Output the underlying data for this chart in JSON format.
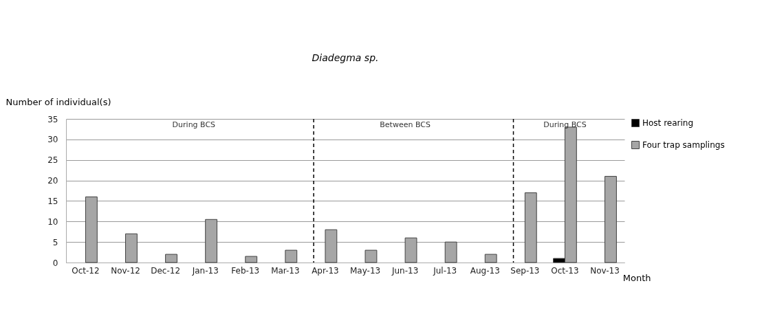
{
  "chart_data": {
    "type": "bar",
    "title": "Diadegma sp.",
    "xlabel": "Month",
    "ylabel": "Number of individual(s)",
    "categories": [
      "Oct-12",
      "Nov-12",
      "Dec-12",
      "Jan-13",
      "Feb-13",
      "Mar-13",
      "Apr-13",
      "May-13",
      "Jun-13",
      "Jul-13",
      "Aug-13",
      "Sep-13",
      "Oct-13",
      "Nov-13"
    ],
    "series": [
      {
        "name": "Host rearing",
        "color": "#000000",
        "values": [
          null,
          null,
          null,
          null,
          null,
          null,
          null,
          null,
          null,
          null,
          null,
          null,
          1,
          null
        ]
      },
      {
        "name": "Four trap samplings",
        "color": "#a6a6a6",
        "values": [
          16,
          7,
          2,
          10.5,
          1.5,
          3,
          8,
          3,
          6,
          5,
          2,
          17,
          33,
          21
        ]
      }
    ],
    "ylim": [
      0,
      35
    ],
    "yticks": [
      0,
      5,
      10,
      15,
      20,
      25,
      30,
      35
    ],
    "grid": "y",
    "legend": "right",
    "ref_lines": [
      {
        "axis": "x",
        "value": "Apr-13",
        "line_style": "dashed",
        "color": "#000000"
      },
      {
        "axis": "x",
        "value": "Sep-13",
        "line_style": "dashed",
        "color": "#000000"
      }
    ],
    "annotations": [
      "During BCS",
      "Between BCS",
      "During BCS"
    ]
  }
}
